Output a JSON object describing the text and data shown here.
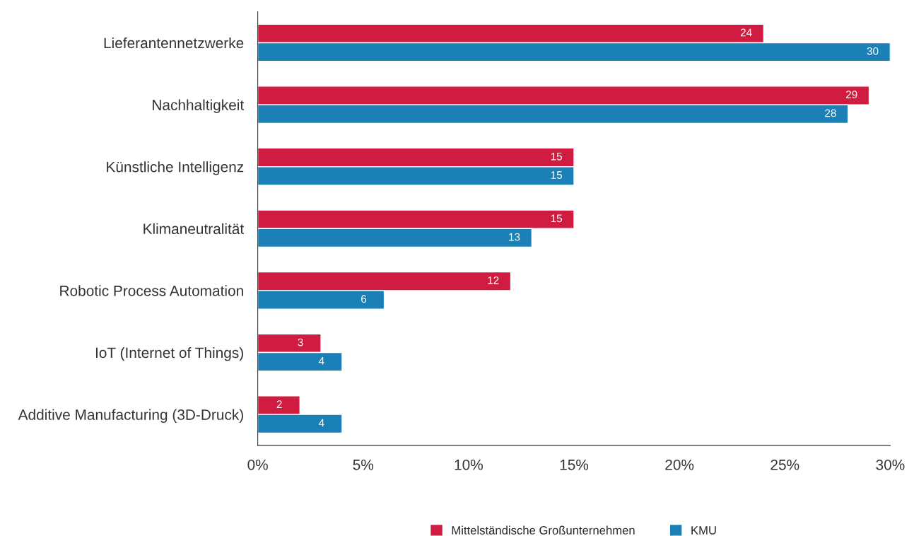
{
  "chart_data": {
    "type": "bar",
    "orientation": "horizontal",
    "categories": [
      "Lieferantennetzwerke",
      "Nachhaltigkeit",
      "Künstliche Intelligenz",
      "Klimaneutralität",
      "Robotic Process Automation",
      "IoT (Internet of Things)",
      "Additive Manufacturing (3D-Druck)"
    ],
    "series": [
      {
        "name": "Mittelständische Großunternehmen",
        "color": "#d01c40",
        "values": [
          24,
          29,
          15,
          15,
          12,
          3,
          2
        ]
      },
      {
        "name": "KMU",
        "color": "#1a80b5",
        "values": [
          30,
          28,
          15,
          13,
          6,
          4,
          4
        ]
      }
    ],
    "xlim": [
      0,
      30
    ],
    "xticks": [
      {
        "value": 0,
        "label": "0%"
      },
      {
        "value": 5,
        "label": "5%"
      },
      {
        "value": 10,
        "label": "10%"
      },
      {
        "value": 15,
        "label": "15%"
      },
      {
        "value": 20,
        "label": "20%"
      },
      {
        "value": 25,
        "label": "25%"
      },
      {
        "value": 30,
        "label": "30%"
      }
    ],
    "data_labels": true,
    "grid": false,
    "legend": "bottom"
  }
}
